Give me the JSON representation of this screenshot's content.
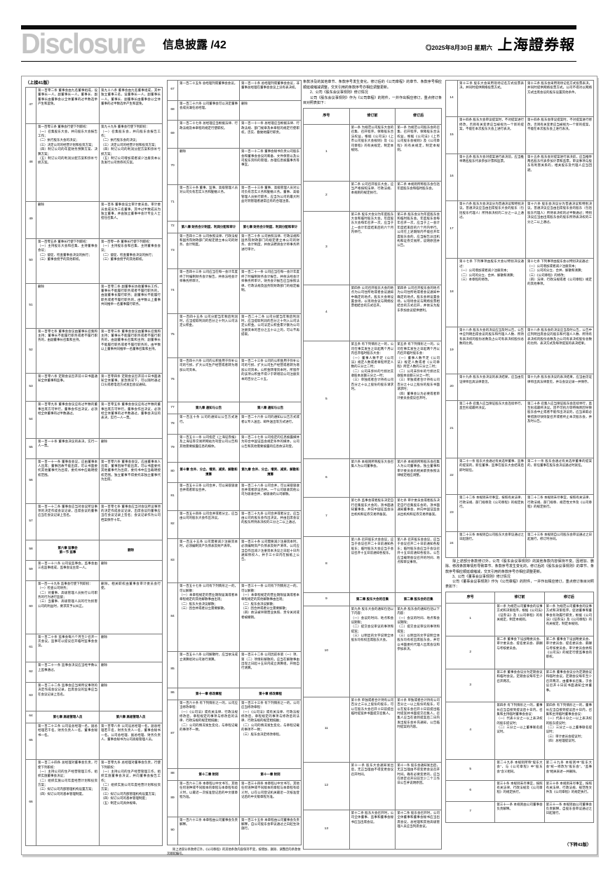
{
  "header": {
    "wordmark": "Disclosure",
    "section_title": "信息披露",
    "page_number": "/42",
    "weather_symbol": "◎",
    "date": "2025年8月30日 星期六",
    "masthead": "上海證券報",
    "wordmark_color": "#c4c4c4",
    "bar_color": "#0d0d0d"
  },
  "page": {
    "continued_from": "（上接41版）",
    "continued_to": "（下转43版）"
  },
  "col_headers": {
    "index": "序号",
    "before": "修订前",
    "after": "修订后"
  },
  "notes": {
    "charter_note": "除上述部分条款修订外，《公司章程》的其他条款内容保持不变，按增加、删除、调整后的条款依次顺延编号。"
  },
  "intros": {
    "g3_intro": "条款涉及的其他章节、条款序号发生变化，修订后的《公司章程》的章节、条款序号相应顺延或缩减调整，交叉引用的条款序号亦相应调整更新。\n　　2、公司《股东会议事规则》修订情况\n　　公司《股东会议事规则》作为《公司章程》的附件，一并作出相应修订，重点修订条目对照表如下：",
    "g4_para": "　　除上述部分条款修订外，公司《股东会议事规则》的其他条款内容保持不变。因增加、删除、修改条款等情形导致章节、条款序号发生变化的，修订后的《股东会议事规则》的章节、条款序号相应顺延或缩减，交叉引用的条款序号亦相应调整更新。\n　　3、公司《董事会议事规则》修订情况\n　　公司《董事会议事规则》作为《公司章程》的附件，一并作出相应修订，重点修订条目对照表如下："
  },
  "tables": {
    "group1": [
      {
        "n": "47",
        "b": "第一百零二条 董事会由九名董事组成，设董事长一人，副董事长一人。董事长、副董事长由董事会以全体董事的过半数选举产生和罢免。",
        "a": "第九十八条 董事会由九名董事组成，其中独立董事三名，设董事长一人，副董事长一人。董事长、副董事长由董事会以全体董事的过半数选举产生和罢免。"
      },
      {
        "n": "48",
        "b": "第一百零三条 董事会行使下列职权：\n（一）召集股东大会，并向股东大会报告工作；\n（二）执行股东大会的决议；\n（三）决定公司的经营计划和投资方案；\n（四）制订公司的年度财务预算方案、决算方案；\n（五）制订公司的利润分配方案和弥补亏损方案。",
        "a": "第九十九条 董事会行使下列职权：\n（一）召集股东会，并向股东会报告工作；\n（二）执行股东会的决议；\n（三）决定公司的经营计划和投资方案；\n（四）制订公司的利润分配方案和弥补亏损方案；\n（五）制订公司增加或者减少注册资本以及发行公司债券的方案。"
      },
      {
        "n": "49",
        "b": "删除",
        "a": "第一百条 董事会设立审计委员会。审计委员会成员为三名董事，其中过半数成员为独立董事，并由独立董事中会计专业人士担任召集人。"
      },
      {
        "n": "50",
        "b": "第一百零五条 董事长行使下列职权：\n（一）主持股东大会和召集、主持董事会会议；\n（二）督促、检查董事会决议的执行；\n（三）董事会授予的其他职权。",
        "a": "第一百零一条 董事长行使下列职权：\n（一）主持股东会和召集、主持董事会会议；\n（二）督促、检查董事会决议的执行；\n（三）董事会授予的其他职权。"
      },
      {
        "n": "51",
        "b": "删除",
        "a": "第一百零二条 副董事长协助董事长工作，董事长不能履行职务或者不履行职务的，由副董事长履行职务；副董事长不能履行职务或者不履行职务的，由半数以上董事共同推举一名董事履行职务。"
      },
      {
        "n": "52",
        "b": "第一百零七条 董事会会议由董事长召集和主持；董事长不能履行职务或者不履行职务的，由副董事长召集和主持。",
        "a": "第一百零三条 董事会会议由董事长召集和主持；董事长不能履行职务或者不履行职务的，由副董事长召集和主持；副董事长不能履行职务或者不履行职务的，由半数以上董事共同推举一名董事召集和主持。"
      },
      {
        "n": "53",
        "b": "第一百零八条 定期会议召开前十日书面通知全体董事和监事。",
        "a": "第一百零四条 定期会议召开前十日书面通知全体董事。紧急情况下，可以随时通过口头或者电话方式发出会议通知。"
      },
      {
        "n": "54",
        "b": "第一百零九条 董事会会议应有过半数的董事出席方可举行。董事会作出决议，必须经全体董事的过半数通过。",
        "a": "第一百零五条 董事会会议应有过半数的董事出席方可举行。董事会作出决议，必须经全体董事的过半数通过。董事会决议的表决，实行一人一票。"
      },
      {
        "n": "55",
        "b": "第一百一十条 董事会决议的表决，实行一人一票。",
        "a": "删除"
      },
      {
        "n": "56",
        "b": "第一百一十一条 董事会会议，应由董事本人出席；董事因故不能出席，可以书面委托其他董事代为出席，委托书中应载明授权范围。",
        "a": "第一百零六条 董事会会议，应由董事本人出席；董事因故不能出席，可以书面委托其他董事代为出席，委托书中应当载明授权范围。独立董事不得委托非独立董事代为出席。"
      },
      {
        "n": "57",
        "b": "第一百一十二条 董事会应当对会议所议事项的决定作成会议记录，出席会议的董事应当在会议记录上签名。",
        "a": "第一百零七条 董事会应当对会议所议事项的决定作成会议记录，出席会议的董事应当在会议记录上签名；会议记录作为公司档案保存十年。"
      },
      {
        "n": "58",
        "c": true,
        "b": "第六章 监事会\n第一节 监事",
        "a": "删除"
      },
      {
        "n": "59",
        "b": "第一百一十八条 公司设监事会。监事会由三名监事组成，监事会设主席一人。",
        "a": "删除"
      },
      {
        "n": "60",
        "b": "第一百一十九条 监事会行使下列职权：\n（一）检查公司财务；\n（二）对董事、高级管理人员执行公司职务的行为进行监督；\n（三）当董事、高级管理人员的行为损害公司的利益时，要求其予以纠正。",
        "a": "删除。相关职权由董事会审计委员会行使。"
      },
      {
        "n": "61",
        "b": "第一百二十条 监事会每六个月至少召开一次会议。监事可以提议召开临时监事会会议。",
        "a": "删除"
      },
      {
        "n": "62",
        "b": "第一百二十一条 监事会决议应当经半数以上监事通过。",
        "a": "删除"
      },
      {
        "n": "63",
        "b": "第一百二十二条 监事会应当将所议事项的决定作成会议记录，出席会议的监事应当在会议记录上签名。",
        "a": "删除"
      },
      {
        "n": "64",
        "c": true,
        "b": "第七章 高级管理人员",
        "a": "第六章 高级管理人员"
      },
      {
        "n": "65",
        "b": "第一百二十三条 公司设总经理一名，副总经理若干名，财务负责人一名，董事会秘书一名。",
        "a": "第一百零八条 公司设总经理一名，副总经理若干名，财务负责人一名，董事会秘书一名。公司总经理、副总经理、财务负责人、董事会秘书为公司高级管理人员。"
      },
      {
        "n": "66",
        "b": "第一百二十四条 总经理对董事会负责，行使下列职权：\n（一）主持公司的生产经营管理工作，组织实施董事会决议；\n（二）组织实施公司年度经营计划和投资方案；\n（三）拟订公司内部管理机构设置方案；\n（四）拟订公司的基本管理制度。",
        "a": "第一百零九条 总经理对董事会负责，行使下列职权：\n（一）主持公司的生产经营管理工作，组织实施董事会决议，并向董事会报告工作；\n（二）组织实施公司年度经营计划和投资方案；\n（三）拟订公司内部管理机构设置方案；\n（四）拟订公司的基本管理制度；\n（五）制定公司具体规章。"
      }
    ],
    "group2": [
      {
        "n": "67",
        "b": "第一百二十五条 总经理列席董事会会议。",
        "a": "第一百一十条 总经理列席董事会会议，非董事总经理在董事会会议上没有表决权。"
      },
      {
        "n": "68",
        "b": "第一百二十六条 公司董事会可以决定董事会成员兼任总经理。",
        "a": "删除"
      },
      {
        "n": "69",
        "b": "第一百二十七条 总经理应当根据法律、行政法规及本章程的规定行使职权。",
        "a": "第一百一十一条 总经理应当根据法律、行政法规、部门规章及本章程的规定行使职权，忠实、勤勉地履行职责。"
      },
      {
        "n": "70",
        "b": "删除",
        "a": "第一百一十二条 董事会秘书负责公司股东会和董事会会议的筹备、文件保管以及公司股东资料的管理，办理信息披露事务等事宜。"
      },
      {
        "n": "71",
        "b": "第一百三十条 董事、监事、高级管理人员对公司负有忠实义务和勤勉义务。",
        "a": "第一百一十三条 董事、高级管理人员对公司负有忠实义务和勤勉义务。董事、高级管理人员执行职务，应当为公司的最大利益尽到管理者通常应有的合理注意。"
      },
      {
        "n": "72",
        "c": true,
        "b": "第八章 财务会计制度、利润分配和审计",
        "a": "第七章 财务会计制度、利润分配和审计"
      },
      {
        "n": "73",
        "b": "第一百四十二条 公司依照法律、行政法规和国务院财政部门的规定建立本公司的财务、会计制度。",
        "a": "第一百二十条 公司依照法律、行政法规和国务院财政部门的规定建立本公司的财务、会计制度，并依法聘请会计师事务所进行审计。"
      },
      {
        "n": "74",
        "b": "第一百四十三条 公司应当在每一会计年度终了时编制财务会计报告，并依法经会计师事务所审计。",
        "a": "第一百二十一条 公司应当在每一会计年度终了时编制财务会计报告，并依法经会计师事务所审计。财务会计报告应当依照法律、行政法规及国务院财政部门的规定编制。"
      },
      {
        "n": "75",
        "b": "第一百四十五条 公司分配当年税后利润时，应当提取利润的百分之十列入公司法定公积金。",
        "a": "第一百二十二条 公司分配当年税后利润时，应当提取利润的百分之十列入公司法定公积金。公司法定公积金累计额为公司注册资本的百分之五十以上的，可以不再提取。"
      },
      {
        "n": "76",
        "b": "第一百四十六条 公司的公积金用于弥补公司的亏损、扩大公司生产经营或者转为增加公司资本。",
        "a": "第一百二十三条 公司的公积金用于弥补公司的亏损、扩大公司生产经营或者转为增加公司资本。公积金转增资本时，所留存的该项公积金不得少于转增前公司注册资本的百分之二十五。"
      },
      {
        "n": "77",
        "c": true,
        "b": "第九章 通知与公告",
        "a": "第八章 通知与公告"
      },
      {
        "n": "78",
        "b": "第一百五十条 公司的通知以公告方式进行。",
        "a": "第一百二十六条 公司的通知以公告方式或者以专人送出、邮件送出等方式进行。"
      },
      {
        "n": "79",
        "b": "第一百五十一条 公司指定《上海证券报》及上海证券交易所网站为刊登公司公告和其他需要披露信息的媒体。",
        "a": "第一百二十七条 公司指定的信息披露媒体为符合中国证监会规定条件的媒体，公司公告和其他需要披露的信息依法刊登。"
      },
      {
        "n": "80",
        "c": true,
        "b": "第十章 合并、分立、增资、减资、解散和清算",
        "a": "第九章 合并、分立、增资、减资、解散和清算"
      },
      {
        "n": "81",
        "b": "第一百五十三条 公司合并，可以采取吸收合并或者新设合并。",
        "a": "第一百二十八条 公司合并，可以采取吸收合并或者新设合并。一个公司吸收其他公司为吸收合并，被吸收的公司解散。"
      },
      {
        "n": "82",
        "b": "第一百五十四条 公司合并或者分立，应当由公司的股东大会作出决议。",
        "a": "第一百二十九条 公司合并或者分立，应当由公司的股东会作出决议，并由出席会议的股东所持表决权的三分之二以上通过。"
      },
      {
        "n": "83",
        "b": "第一百五十五条 公司需要减少注册资本时，必须编制资产负债表及财产清单。",
        "a": "第一百三十条 公司需要减少注册资本时，必须编制资产负债表及财产清单。公司应当自作出减少注册资本决议之日起十日内通知债权人，并于三十日内在报纸上公告。"
      },
      {
        "n": "84",
        "b": "第一百五十七条 公司有下列情形之一的，可以解散：\n（一）本章程规定的营业期限届满或者本章程规定的其他解散事由出现；\n（二）股东大会决议解散；\n（三）因合并或者分立需要解散。",
        "a": "第一百三十一条 公司有下列情形之一的，可以解散：\n（一）本章程规定的营业期限届满或者本章程规定的其他解散事由出现；\n（二）股东会决议解散；\n（三）因合并或者分立需要解散；\n（四）依法被吊销营业执照、责令关闭或者被撤销。"
      },
      {
        "n": "85",
        "b": "第一百五十八条 公司解散时，应当依法成立清算组对公司进行清算。",
        "a": "第一百三十二条 公司因前条第（一）项、第（二）项情形解散的，应当在解散事由出现之日起十五日内成立清算组，开始自行清算。"
      },
      {
        "n": "86",
        "c": true,
        "b": "第十一章 修改章程",
        "a": "第十章 修改章程"
      },
      {
        "n": "87",
        "b": "第一百六十条 有下列情形之一的，公司应当修改章程：\n（一）《公司法》或有关法律、行政法规修改后，章程规定的事项与修改后的法律、行政法规的规定相抵触；\n（二）公司的情况发生变化，与章程记载的事项不一致。",
        "a": "第一百三十三条 有下列情形之一的，公司应当修改章程：\n（一）《公司法》或有关法律、行政法规修改后，章程规定的事项与修改后的法律、行政法规的规定相抵触；\n（二）公司的情况发生变化，与章程记载的事项不一致；\n（三）股东会决定修改章程。"
      },
      {
        "n": "88",
        "c": true,
        "b": "第十二章 附则",
        "a": "第十一章 附则"
      },
      {
        "n": "89",
        "b": "第一百六十二条 本章程以中文书写，其他任何语种或不同版本的章程与本章程有歧义时，以最近一次核准登记后的中文版章程为准。",
        "a": "第一百三十四条 本章程以中文书写，其他任何语种或不同版本的章程与本章程有歧义时，以在公司登记机关最近一次核准登记后的中文版章程为准。"
      },
      {
        "n": "90",
        "b": "第一百六十三条 本章程由公司董事会负责解释。",
        "a": "第一百三十五条 本章程由公司董事会负责解释，自公司股东会审议通过之日起生效施行。"
      }
    ],
    "group3": [
      {
        "h": true
      },
      {
        "n": "1",
        "b": "第一条 为规范公司股东大会的召集、召开程序，保障股东合法权益，根据《公司法》《上市公司股东大会规则》及《公司章程》的有关规定，制定本规则。",
        "a": "第一条 为规范公司股东会的召集、召开程序，保障股东合法权益，根据《公司法》《上市公司股东会规则》及《公司章程》的有关规定，制定本规则。"
      },
      {
        "n": "2",
        "b": "第二条 公司召开股东大会，应当严格按照法律、行政法规、本规则的规定执行。",
        "a": "第二条 本规则所称股东会包括年度股东会和临时股东会。"
      },
      {
        "n": "3",
        "b": "第三条 股东大会分为年度股东大会和临时股东大会。年度股东大会每年召开一次，应当于上一会计年度结束后的六个月内举行。",
        "a": "第三条 股东会分为年度股东会和临时股东会。年度股东会每年召开一次，应当于上一会计年度结束后的六个月内举行。公司在上述期限内不能召开年度股东会的，应当报告派出机构和证券交易所，说明原因并公告。"
      },
      {
        "n": "4",
        "b": "第四条 公司召开股东大会的地点为公司住所地或者会议通知中确定的地点。股东大会将设置会场，以现场会议与网络投票相结合的方式召开。",
        "a": "第四条 公司召开股东会的地点为公司住所地或者会议通知中确定的地点。股东会将设置会场，以现场会议与网络投票相结合的方式召开，并依法为股东参加会议提供便利。"
      },
      {
        "n": "5",
        "b": "第五条 有下列情形之一的，公司在事实发生之日起两个月以内召开临时股东大会：\n（一）董事人数不足《公司法》规定人数或者章程所定人数的三分之二时；\n（二）公司未弥补的亏损达实收股本总额三分之一时；\n（三）单独或者合计持有公司百分之十以上股份的股东请求时。",
        "a": "第五条 有下列情形之一的，公司在事实发生之日起两个月以内召开临时股东会：\n（一）董事人数不足《公司法》规定人数或者《公司章程》所定人数的三分之二时；\n（二）公司未弥补的亏损达实收股本总额三分之一时；\n（三）单独或者合计持有公司百分之十以上股份的股东书面请求时；\n（四）董事会认为必要或者审计委员会提议召开时。"
      },
      {
        "n": "6",
        "b": "第六条 本规则所称股东大会召集人为公司董事会。",
        "a": "第六条 本规则所称股东会召集人为公司董事会。独立董事和审计委员会的相关职责依照法律规定相应调整。"
      },
      {
        "n": "7",
        "b": "第七条 监事会或者股东决定自行召集股东大会的，须书面通知董事会，并向中国证监会派出机构和证券交易所备案。",
        "a": "第七条 审计委员会或者股东决定自行召集股东会的，须书面通知董事会，并向中国证监会派出机构和证券交易所备案。"
      },
      {
        "n": "8",
        "b": "第八条 召开股东大会会议，应当于会议召开二十日前通知各股东；临时股东大会应当于会议召开十五日前通知各股东。",
        "a": "第八条 召开股东会会议，应当于会议召开二十日前通知各股东；临时股东会应当于会议召开十五日前通知各股东。公告应当载明会议召开的时间、地点和审议事项。"
      },
      {
        "n": "9",
        "c": true,
        "b": "第二章 股东大会的召集",
        "a": "第二章 股东会的召集"
      },
      {
        "n": "10",
        "b": "第九条 股东大会的通知包括以下内容：\n（一）会议的时间、地点和会议期限；\n（二）提交会议审议的事项和提案；\n（三）以明显的文字说明全体股东均有权出席股东大会。",
        "a": "第九条 股东会的通知包括以下内容：\n（一）会议的时间、地点和会议期限；\n（二）提交会议审议的事项和提案；\n（三）以明显的文字说明全体股东均有权出席股东会，并可以书面委托代理人出席会议和参加表决。"
      },
      {
        "n": "11",
        "b": "第十条 单独或者合计持有公司百分之三以上股份的股东，可以在股东大会召开十日前提出临时提案并书面提交召集人。",
        "a": "第十条 单独或者合计持有公司百分之一以上股份的股东，可以在股东会召开十日前提出临时提案并书面提交召集人。召集人应当在收到提案后二日内发出股东会补充通知，公告临时提案的内容。"
      },
      {
        "n": "12",
        "b": "第十一条 股东大会通知发出后，无正当理由不得变更会议召开时间。",
        "a": "第十一条 股东会通知发出后，无正当理由不得变更会议召开时间。确有必要变更的，应当在原定召开日前至少二个工作日公告并说明原因。"
      },
      {
        "n": "13",
        "b": "第十二条 股东大会召开时，公司全体董事、监事和董事会秘书应当出席会议。",
        "a": "第十二条 股东会召开时，公司全体董事和董事会秘书应当出席会议，总经理和其他高级管理人员应当列席会议。"
      }
    ],
    "group4a": [
      {
        "n": "14",
        "b": "第十三条 股东大会采用现场记名方式投票表决，并同时提供网络投票方式。",
        "a": "第十三条 股东会采用现场记名方式投票表决，并同时提供网络投票方式。公司不得对以网络方式出席会议的股东设置其他条件。"
      },
      {
        "n": "15",
        "b": "第十四条 股东大会审议提案时，不对提案进行修改，否则有关变更应当被视为一个新的提案，不能在本次股东大会上进行表决。",
        "a": "第十四条 股东会审议提案时，不对提案进行修改，否则有关变更应当被视为一个新的提案，不能在本次股东会上进行表决。"
      },
      {
        "n": "16",
        "b": "第十五条 股东大会对提案进行表决前，应当推举两名股东代表参加计票和监票。",
        "a": "第十五条 股东会对提案进行表决前，应当推举两名股东代表参加计票和监票。审议事项与股东有利害关系的，相关股东及代理人应当回避。"
      },
      {
        "n": "17",
        "b": "第十六条 股东大会决议分为普通决议和特别决议。普通决议应当由出席股东大会的股东（包括股东代理人）所持表决权的二分之一以上通过。",
        "a": "第十六条 股东会决议分为普通决议和特别决议。普通决议应当由出席股东会的股东（包括股东代理人）所持表决权的过半数通过；特别决议应当由出席股东会的股东所持表决权的三分之二以上通过。"
      },
      {
        "n": "18",
        "b": "第十七条 下列事项由股东大会以特别决议通过：\n（一）公司增加或者减少注册资本；\n（二）公司的分立、合并、解散和清算；\n（三）本章程的修改。",
        "a": "第十七条 下列事项由股东会以特别决议通过：\n（一）公司增加或者减少注册资本；\n（二）公司的分立、合并、解散和清算；\n（三）《公司章程》的修改；\n（四）法律、行政法规或者《公司章程》规定的其他事项。"
      },
      {
        "n": "19",
        "b": "第十八条 股东大会的决议应当及时公告，公告中应列明出席会议的股东和代理人人数、所持有表决权的股份总数及占公司有表决权股份总数的比例。",
        "a": "第十八条 股东会的决议应当及时公告，公告中应列明出席会议的股东和代理人人数、所持有表决权的股份总数及占公司有表决权股份总数的比例、表决方式及每项提案的表决结果。"
      },
      {
        "n": "20",
        "b": "第十九条 股东大会决议的表决结果，应当由见证律师出具法律意见。",
        "a": "第十九条 股东会决议的表决结果，应当由见证律师出具法律意见，并与会议记录一并保存。"
      },
      {
        "n": "21",
        "b": "第二十条 召集人应当保证股东大会连续举行，直至形成最终决议。",
        "a": "第二十条 召集人应当保证股东会连续举行，直至形成最终决议。因不可抗力等特殊原因导致股东会中止或者不能作出决议的，应当采取必要措施尽快恢复召开或者终止本次股东会，并及时公告。"
      },
      {
        "n": "22",
        "b": "第二十一条 股东大会通过有关选举董事、监事的提案的，新任董事、监事在股东大会结束后即时就任。",
        "a": "第二十一条 股东会通过有关选举董事的提案的，新任董事在股东会决议通过时就任。"
      },
      {
        "n": "23",
        "b": "第二十二条 本规则未尽事宜，按照有关法律、行政法规、部门规章及《公司章程》的规定执行。",
        "a": "第二十二条 本规则未尽事宜，按照有关法律、行政法规、部门规章、规范性文件及《公司章程》的规定执行。"
      },
      {
        "n": "24",
        "b": "第二十三条 本规则自公司股东大会审议通过之日起施行。",
        "a": "第二十三条 本规则自公司股东会审议通过之日起施行，修订时亦同。"
      }
    ],
    "group4b": [
      {
        "h": true
      },
      {
        "n": "1",
        "b": "第一条 为规范公司董事会的议事方式和决策程序，根据《公司法》《证券法》及《公司章程》的有关规定，制定本规则。",
        "a": "第一条 为规范公司董事会的议事方式和决策程序，促进董事和董事会有效履行职责，根据《公司法》《证券法》及《公司章程》的有关规定，制定本规则。"
      },
      {
        "n": "2",
        "b": "第二条 董事会下设战略委员会、审计委员会、提名委员会、薪酬与考核委员会。",
        "a": "第二条 董事会下设战略委员会、审计委员会、提名委员会、薪酬与考核委员会。审计委员会依照《公司法》的规定行使监事会的职权。"
      },
      {
        "n": "3",
        "b": "第三条 董事会会议分为定期会议和临时会议。定期会议每年至少召开两次。",
        "a": "第三条 董事会会议分为定期会议和临时会议。定期会议每年至少召开两次，由董事长召集，于会议召开十日前书面通知全体董事。"
      },
      {
        "n": "4",
        "b": "第四条 有下列情形之一的，董事长应当自接到提议后十日内，召集和主持临时董事会会议：\n（一）代表十分之一以上表决权的股东提议时；\n（二）三分之一以上董事联名提议时。",
        "a": "第四条 有下列情形之一的，董事长应当自接到提议后十日内，召集和主持临时董事会会议：\n（一）代表十分之一以上表决权的股东提议时；\n（二）三分之一以上董事联名提议时；\n（三）审计委员会提议时；\n（四）总经理提议时。"
      },
      {
        "n": "5",
        "b": "第二十九条 本规则所称“股东大会”，与《公司章程》中“股东会”含义相同。",
        "a": "第二十九条 本规则中“股东大会”统一修改为“股东会”，“监事会”相关表述一并删除。"
      },
      {
        "n": "6",
        "b": "第三十条 本规则未尽事宜，按照有关法律、行政法规及《公司章程》的规定执行。",
        "a": "第三十条 本规则未尽事宜，按照有关法律、行政法规、规范性文件及《公司章程》的规定执行。"
      },
      {
        "n": "7",
        "b": "第三十一条 本规则由公司董事会负责解释。",
        "a": "第三十一条 本规则由公司董事会负责解释，自股东会审议通过之日起施行。"
      }
    ]
  }
}
